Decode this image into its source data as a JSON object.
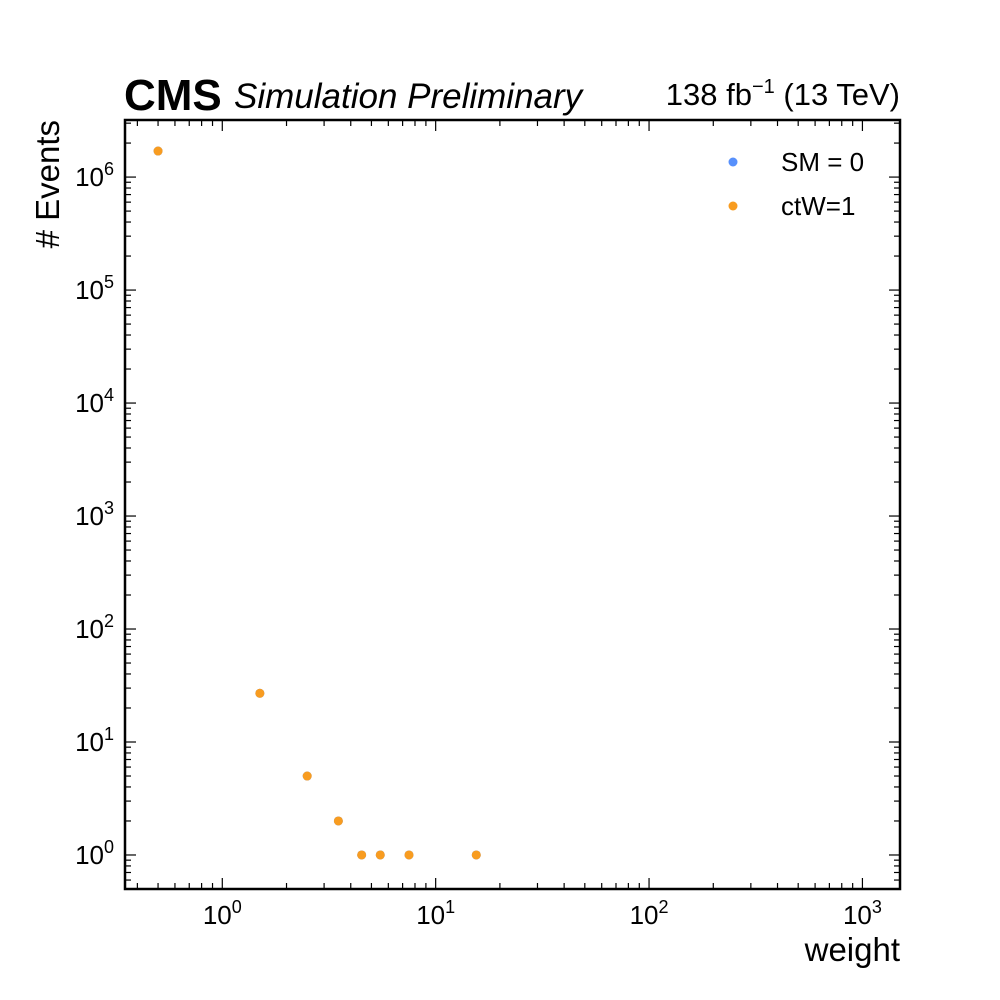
{
  "header": {
    "experiment": "CMS",
    "status": "Simulation Preliminary",
    "lumi_value": "138 fb",
    "lumi_exponent": "−1",
    "lumi_energy": "(13 TeV)"
  },
  "colors": {
    "sm": "#5790fc",
    "ctw": "#f89c20",
    "axes": "#000000"
  },
  "chart_data": {
    "type": "scatter",
    "title": "",
    "xlabel": "weight",
    "ylabel": "# Events",
    "xscale": "log",
    "yscale": "log",
    "xlim": [
      0.35,
      1500
    ],
    "ylim": [
      0.5,
      3200000
    ],
    "x_ticks": [
      {
        "value": 1,
        "base": "10",
        "exp": "0"
      },
      {
        "value": 10,
        "base": "10",
        "exp": "1"
      },
      {
        "value": 100,
        "base": "10",
        "exp": "2"
      },
      {
        "value": 1000,
        "base": "10",
        "exp": "3"
      }
    ],
    "y_ticks": [
      {
        "value": 1,
        "base": "10",
        "exp": "0"
      },
      {
        "value": 10,
        "base": "10",
        "exp": "1"
      },
      {
        "value": 100,
        "base": "10",
        "exp": "2"
      },
      {
        "value": 1000,
        "base": "10",
        "exp": "3"
      },
      {
        "value": 10000,
        "base": "10",
        "exp": "4"
      },
      {
        "value": 100000,
        "base": "10",
        "exp": "5"
      },
      {
        "value": 1000000,
        "base": "10",
        "exp": "6"
      }
    ],
    "grid": false,
    "legend_position": "top-right",
    "series": [
      {
        "name": "SM = 0",
        "color": "#5790fc",
        "x": [
          0.5,
          1.5,
          2.5,
          3.5,
          4.5,
          5.5,
          7.5,
          15.5
        ],
        "y": [
          1700000,
          27,
          5,
          2,
          1,
          1,
          1,
          1
        ]
      },
      {
        "name": "ctW=1",
        "color": "#f89c20",
        "x": [
          0.5,
          1.5,
          2.5,
          3.5,
          4.5,
          5.5,
          7.5,
          15.5
        ],
        "y": [
          1700000,
          27,
          5,
          2,
          1,
          1,
          1,
          1
        ]
      }
    ]
  }
}
